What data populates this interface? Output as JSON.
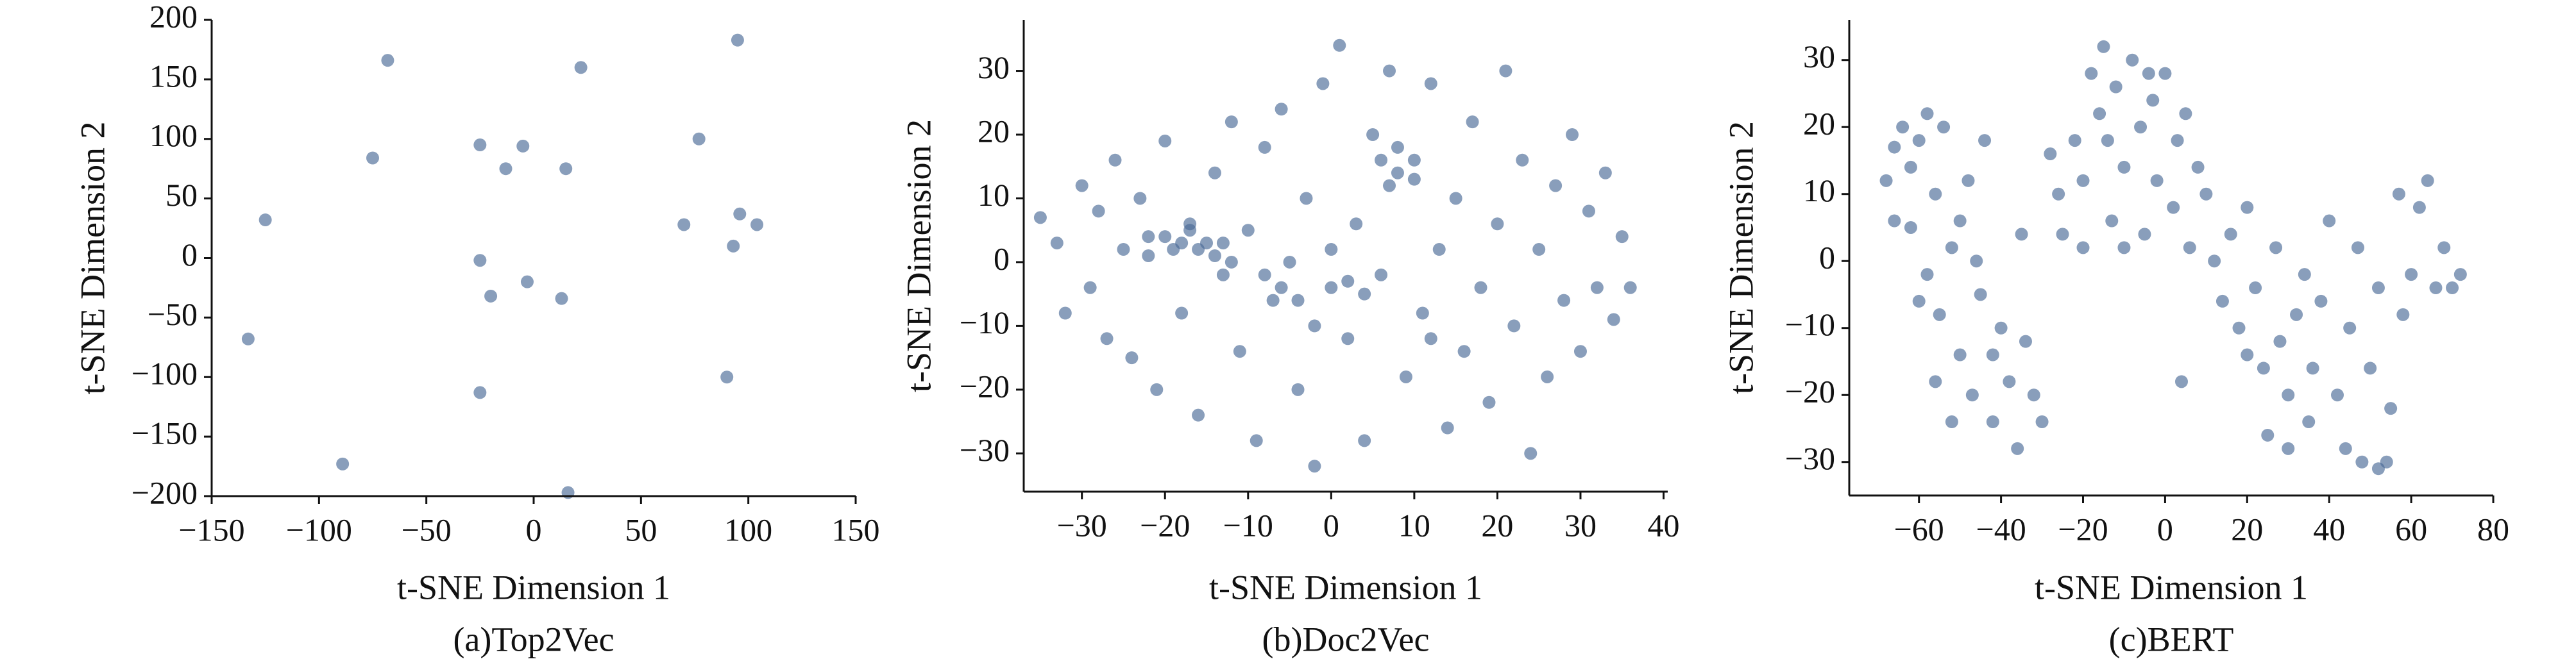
{
  "chart_data": [
    {
      "type": "scatter",
      "title": "(a)Top2Vec",
      "x_label": "t-SNE Dimension 1",
      "y_label": "t-SNE Dimension 2",
      "color": "#4a6a96",
      "x": [
        -68,
        22,
        95,
        -75,
        -25,
        -13,
        -5,
        15,
        77,
        -125,
        70,
        96,
        104,
        93,
        -25,
        -20,
        -3,
        13,
        -133,
        90,
        -25,
        -89,
        16
      ],
      "y": [
        166,
        160,
        183,
        84,
        95,
        75,
        94,
        75,
        100,
        32,
        28,
        37,
        28,
        10,
        -2,
        -32,
        -20,
        -34,
        -68,
        -100,
        -113,
        -173,
        -197
      ],
      "xlim": [
        -150,
        150
      ],
      "ylim": [
        -200,
        200
      ],
      "xticks": [
        {
          "value": -150,
          "label": "−150"
        },
        {
          "value": -100,
          "label": "−100"
        },
        {
          "value": -50,
          "label": "−50"
        },
        0,
        50,
        100,
        150
      ],
      "yticks": [
        {
          "value": -200,
          "label": "−200"
        },
        {
          "value": -150,
          "label": "−150"
        },
        {
          "value": -100,
          "label": "−100"
        },
        {
          "value": -50,
          "label": "−50"
        },
        0,
        50,
        100,
        150,
        200
      ]
    },
    {
      "type": "scatter",
      "title": "(b)Doc2Vec",
      "x_label": "t-SNE Dimension 1",
      "y_label": "t-SNE Dimension 2",
      "color": "#4a6a96",
      "x": [
        -35,
        -33,
        -32,
        -30,
        -29,
        -28,
        -27,
        -26,
        -25,
        -24,
        -23,
        -22,
        -21,
        -20,
        -19,
        -18,
        -17,
        -16,
        -15,
        -14,
        -13,
        -12,
        -11,
        -10,
        -9,
        -8,
        -7,
        -6,
        -5,
        -4,
        -3,
        -2,
        -1,
        0,
        1,
        2,
        3,
        4,
        5,
        6,
        7,
        8,
        9,
        10,
        11,
        12,
        13,
        14,
        15,
        16,
        17,
        18,
        19,
        20,
        21,
        22,
        23,
        24,
        25,
        26,
        27,
        28,
        29,
        30,
        31,
        32,
        33,
        34,
        35,
        36,
        -20,
        -18,
        -16,
        -14,
        -12,
        -17,
        -13,
        -22,
        -8,
        -6,
        -4,
        2,
        4,
        6,
        8,
        10,
        7,
        0,
        -2,
        12
      ],
      "y": [
        7,
        3,
        -8,
        12,
        -4,
        8,
        -12,
        16,
        2,
        -15,
        10,
        4,
        -20,
        19,
        2,
        -8,
        6,
        -24,
        3,
        14,
        -2,
        22,
        -14,
        5,
        -28,
        18,
        -6,
        24,
        0,
        -20,
        10,
        -32,
        28,
        -4,
        34,
        -12,
        6,
        -28,
        20,
        -2,
        30,
        14,
        -18,
        16,
        -8,
        28,
        2,
        -26,
        10,
        -14,
        22,
        -4,
        -22,
        6,
        30,
        -10,
        16,
        -30,
        2,
        -18,
        12,
        -6,
        20,
        -14,
        8,
        -4,
        14,
        -9,
        4,
        -4,
        4,
        3,
        2,
        1,
        0,
        5,
        3,
        1,
        -2,
        -4,
        -6,
        -3,
        -5,
        16,
        18,
        13,
        12,
        2,
        -10,
        -12
      ],
      "xlim": [
        -37,
        40.5
      ],
      "ylim": [
        -36,
        38
      ],
      "xticks": [
        {
          "value": -30,
          "label": "−30"
        },
        {
          "value": -20,
          "label": "−20"
        },
        {
          "value": -10,
          "label": "−10"
        },
        0,
        10,
        20,
        30,
        40
      ],
      "yticks": [
        {
          "value": -30,
          "label": "−30"
        },
        {
          "value": -20,
          "label": "−20"
        },
        {
          "value": -10,
          "label": "−10"
        },
        0,
        10,
        20,
        30
      ]
    },
    {
      "type": "scatter",
      "title": "(c)BERT",
      "x_label": "t-SNE Dimension 1",
      "y_label": "t-SNE Dimension 2",
      "color": "#4a6a96",
      "x": [
        -68,
        -66,
        -64,
        -62,
        -60,
        -58,
        -56,
        -55,
        -54,
        -52,
        -50,
        -48,
        -47,
        -45,
        -44,
        -42,
        -40,
        -38,
        -36,
        -35,
        -34,
        -32,
        -30,
        -46,
        -50,
        -60,
        -56,
        -52,
        -42,
        -62,
        -66,
        -58,
        -28,
        -26,
        -25,
        -22,
        -20,
        -18,
        -16,
        -15,
        -13,
        -12,
        -10,
        -8,
        -6,
        -5,
        -3,
        -2,
        0,
        2,
        3,
        5,
        6,
        8,
        -20,
        -10,
        -14,
        -4,
        10,
        12,
        14,
        16,
        18,
        20,
        22,
        24,
        25,
        27,
        28,
        30,
        32,
        34,
        35,
        36,
        38,
        40,
        42,
        44,
        45,
        47,
        48,
        50,
        52,
        54,
        55,
        57,
        58,
        60,
        62,
        64,
        66,
        68,
        70,
        72,
        52,
        30,
        4,
        20
      ],
      "y": [
        12,
        17,
        20,
        5,
        18,
        -2,
        10,
        -8,
        20,
        2,
        -14,
        12,
        -20,
        -5,
        18,
        -24,
        -10,
        -18,
        -28,
        4,
        -12,
        -20,
        -24,
        0,
        6,
        -6,
        -18,
        -24,
        -14,
        14,
        6,
        22,
        16,
        10,
        4,
        18,
        12,
        28,
        22,
        32,
        6,
        26,
        14,
        30,
        20,
        4,
        24,
        12,
        28,
        8,
        18,
        22,
        2,
        14,
        2,
        2,
        18,
        28,
        10,
        0,
        -6,
        4,
        -10,
        8,
        -4,
        -16,
        -26,
        2,
        -12,
        -20,
        -8,
        -2,
        -24,
        -16,
        -6,
        6,
        -20,
        -28,
        -10,
        2,
        -30,
        -16,
        -4,
        -30,
        -22,
        10,
        -8,
        -2,
        8,
        12,
        -4,
        2,
        -4,
        -2,
        -31,
        -28,
        -18,
        -14
      ],
      "xlim": [
        -77,
        80
      ],
      "ylim": [
        -35,
        36
      ],
      "xticks": [
        {
          "value": -60,
          "label": "−60"
        },
        {
          "value": -40,
          "label": "−40"
        },
        {
          "value": -20,
          "label": "−20"
        },
        0,
        20,
        40,
        60,
        80
      ],
      "yticks": [
        {
          "value": -30,
          "label": "−30"
        },
        {
          "value": -20,
          "label": "−20"
        },
        {
          "value": -10,
          "label": "−10"
        },
        0,
        10,
        20,
        30
      ]
    }
  ]
}
